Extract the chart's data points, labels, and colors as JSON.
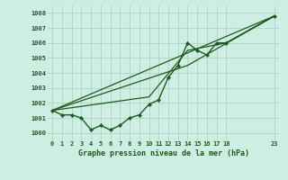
{
  "xlabel": "Graphe pression niveau de la mer (hPa)",
  "background_color": "#ceeee4",
  "grid_color": "#aacfbc",
  "line_color": "#1a5c1a",
  "xlim": [
    -0.5,
    23.5
  ],
  "ylim": [
    999.5,
    1008.5
  ],
  "yticks": [
    1000,
    1001,
    1002,
    1003,
    1004,
    1005,
    1006,
    1007,
    1008
  ],
  "xticks": [
    0,
    1,
    2,
    3,
    4,
    5,
    6,
    7,
    8,
    9,
    10,
    11,
    12,
    13,
    14,
    15,
    16,
    17,
    18,
    23
  ],
  "xtick_labels": [
    "0",
    "1",
    "2",
    "3",
    "4",
    "5",
    "6",
    "7",
    "8",
    "9",
    "10",
    "11",
    "12",
    "13",
    "14",
    "15",
    "16",
    "17",
    "18",
    "23"
  ],
  "series_main": {
    "x": [
      0,
      1,
      2,
      3,
      4,
      5,
      6,
      7,
      8,
      9,
      10,
      11,
      12,
      13,
      14,
      15,
      16,
      17,
      18,
      23
    ],
    "y": [
      1001.5,
      1001.2,
      1001.2,
      1001.0,
      1000.2,
      1000.5,
      1000.2,
      1000.5,
      1001.0,
      1001.2,
      1001.9,
      1002.2,
      1003.7,
      1004.5,
      1006.0,
      1005.5,
      1005.2,
      1006.0,
      1006.0,
      1007.8
    ],
    "linewidth": 1.0,
    "markersize": 2.2
  },
  "series_straight": [
    {
      "x": [
        0,
        23
      ],
      "y": [
        1001.5,
        1007.8
      ],
      "linewidth": 0.9
    },
    {
      "x": [
        0,
        14,
        23
      ],
      "y": [
        1001.5,
        1004.5,
        1007.8
      ],
      "linewidth": 0.9
    },
    {
      "x": [
        0,
        10,
        14,
        18,
        23
      ],
      "y": [
        1001.5,
        1002.4,
        1005.5,
        1006.0,
        1007.8
      ],
      "linewidth": 0.9
    }
  ]
}
